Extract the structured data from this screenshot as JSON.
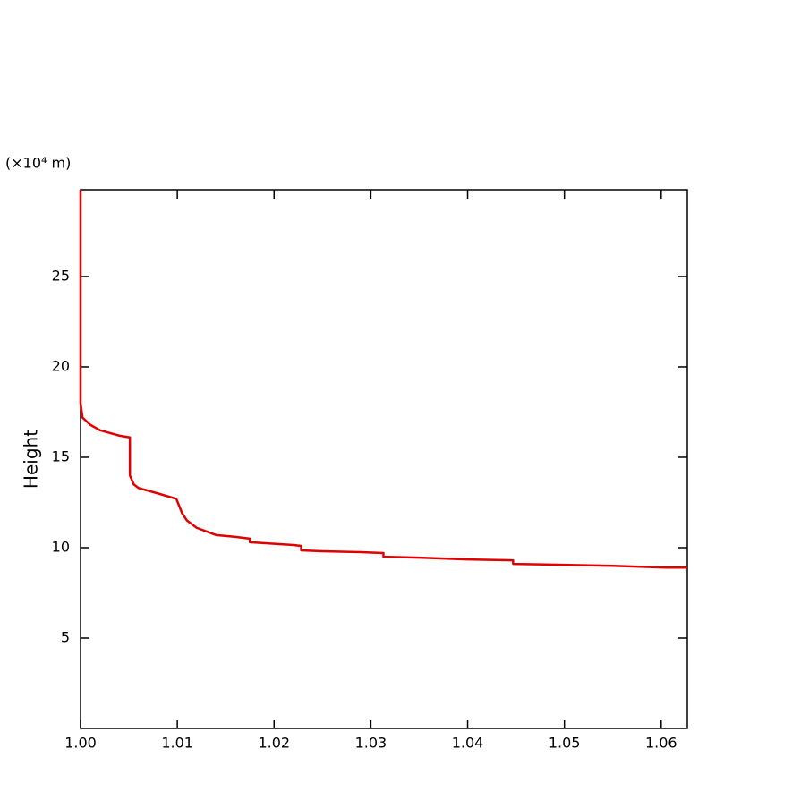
{
  "chart_data": {
    "type": "line",
    "y_unit_label": "(×10⁴ m)",
    "ylabel": "Height",
    "xlim": [
      1.0,
      1.0627
    ],
    "ylim": [
      0,
      29.8
    ],
    "xticks": [
      {
        "value": 1.0,
        "label": "1.00"
      },
      {
        "value": 1.01,
        "label": "1.01"
      },
      {
        "value": 1.02,
        "label": "1.02"
      },
      {
        "value": 1.03,
        "label": "1.03"
      },
      {
        "value": 1.04,
        "label": "1.04"
      },
      {
        "value": 1.05,
        "label": "1.05"
      },
      {
        "value": 1.06,
        "label": "1.06"
      }
    ],
    "yticks": [
      5,
      10,
      15,
      20,
      25
    ],
    "series": [
      {
        "color": "#e00000",
        "x": [
          1.0,
          1.0,
          1.0002,
          1.001,
          1.002,
          1.004,
          1.0051,
          1.0051,
          1.0055,
          1.006,
          1.008,
          1.0099,
          1.0105,
          1.011,
          1.012,
          1.014,
          1.016,
          1.0175,
          1.0175,
          1.022,
          1.0228,
          1.0228,
          1.025,
          1.029,
          1.0313,
          1.0313,
          1.035,
          1.04,
          1.0447,
          1.0447,
          1.05,
          1.055,
          1.0605,
          1.0627
        ],
        "values": [
          29.8,
          18.0,
          17.2,
          16.8,
          16.5,
          16.2,
          16.1,
          14.0,
          13.5,
          13.3,
          13.0,
          12.7,
          11.9,
          11.5,
          11.1,
          10.7,
          10.6,
          10.5,
          10.3,
          10.15,
          10.1,
          9.85,
          9.8,
          9.75,
          9.7,
          9.5,
          9.45,
          9.35,
          9.3,
          9.1,
          9.05,
          9.0,
          8.9,
          8.9
        ]
      }
    ]
  }
}
